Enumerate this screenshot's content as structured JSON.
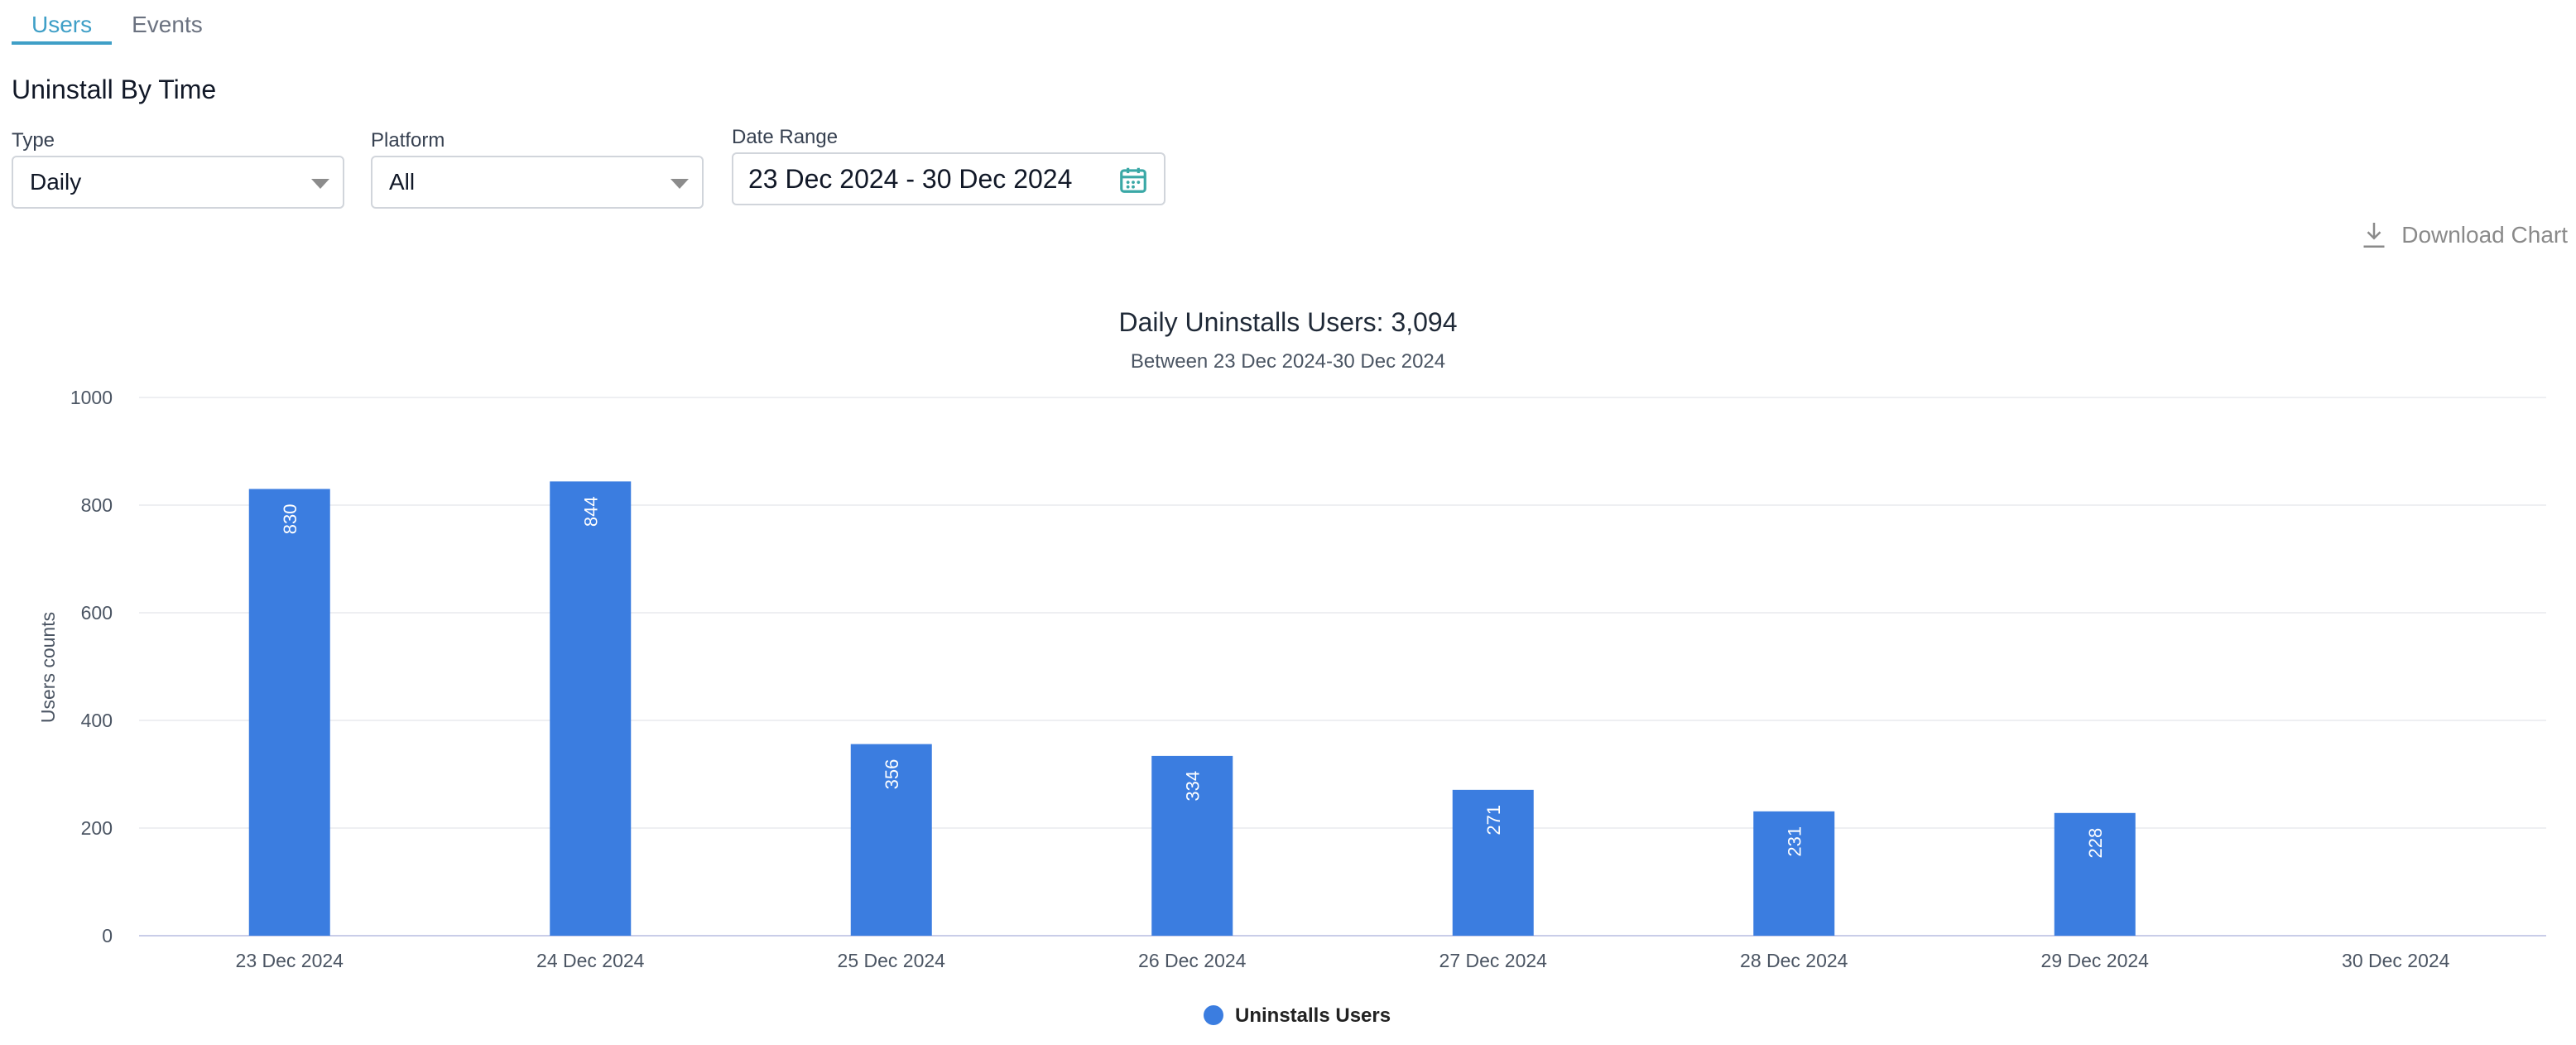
{
  "tabs": [
    {
      "label": "Users",
      "active": true
    },
    {
      "label": "Events",
      "active": false
    }
  ],
  "section_title": "Uninstall By Time",
  "filters": {
    "type": {
      "label": "Type",
      "value": "Daily"
    },
    "platform": {
      "label": "Platform",
      "value": "All"
    },
    "date_range": {
      "label": "Date Range",
      "value": "23 Dec 2024 - 30 Dec 2024",
      "icon": "calendar-icon"
    }
  },
  "download": {
    "label": "Download Chart",
    "icon": "download-icon"
  },
  "colors": {
    "accent": "#3f9fc7",
    "bar": "#3b7de0",
    "calendar": "#3aa8a6"
  },
  "chart_data": {
    "type": "bar",
    "title": "Daily Uninstalls Users: 3,094",
    "subtitle": "Between 23 Dec 2024-30 Dec 2024",
    "ylabel": "Users counts",
    "xlabel": "",
    "ylim": [
      0,
      1000
    ],
    "yticks": [
      0,
      200,
      400,
      600,
      800,
      1000
    ],
    "categories": [
      "23 Dec 2024",
      "24 Dec 2024",
      "25 Dec 2024",
      "26 Dec 2024",
      "27 Dec 2024",
      "28 Dec 2024",
      "29 Dec 2024",
      "30 Dec 2024"
    ],
    "series": [
      {
        "name": "Uninstalls Users",
        "values": [
          830,
          844,
          356,
          334,
          271,
          231,
          228,
          0
        ],
        "color": "#3b7de0"
      }
    ],
    "grid": true,
    "legend": "bottom-center"
  }
}
